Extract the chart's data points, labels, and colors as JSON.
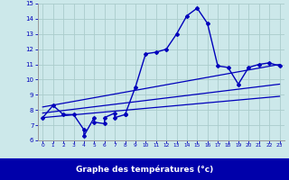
{
  "xlabel": "Graphe des températures (°c)",
  "xlim": [
    -0.5,
    23.5
  ],
  "ylim": [
    6,
    15
  ],
  "xticks": [
    0,
    1,
    2,
    3,
    4,
    5,
    6,
    7,
    8,
    9,
    10,
    11,
    12,
    13,
    14,
    15,
    16,
    17,
    18,
    19,
    20,
    21,
    22,
    23
  ],
  "yticks": [
    6,
    7,
    8,
    9,
    10,
    11,
    12,
    13,
    14,
    15
  ],
  "bg_color": "#cce8ea",
  "grid_color": "#aacccc",
  "line_color": "#0000bb",
  "xlabel_bg": "#0000aa",
  "xlabel_color": "#ffffff",
  "temp_x": [
    0,
    1,
    2,
    3,
    4,
    4,
    5,
    5,
    6,
    6,
    7,
    7,
    8,
    8,
    9,
    10,
    11,
    12,
    13,
    14,
    15,
    16,
    17,
    18,
    19,
    20,
    21,
    22,
    23
  ],
  "temp_y": [
    7.5,
    8.3,
    7.7,
    7.7,
    6.7,
    6.3,
    7.5,
    7.2,
    7.1,
    7.5,
    7.8,
    7.5,
    7.7,
    7.7,
    9.5,
    11.7,
    11.8,
    12.0,
    13.0,
    14.2,
    14.7,
    13.7,
    10.9,
    10.8,
    9.7,
    10.8,
    11.0,
    11.1,
    10.9
  ],
  "trend_lines": [
    [
      [
        0,
        8.2
      ],
      [
        23,
        11.0
      ]
    ],
    [
      [
        0,
        7.8
      ],
      [
        23,
        9.7
      ]
    ],
    [
      [
        0,
        7.5
      ],
      [
        23,
        8.9
      ]
    ]
  ]
}
